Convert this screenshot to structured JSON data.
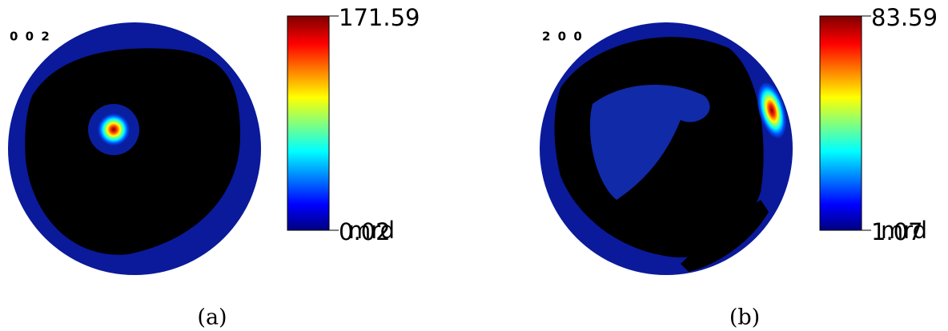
{
  "chart_data": [
    {
      "type": "pole-figure",
      "title": "0 0 2",
      "caption": "(a)",
      "unit": "mrd",
      "clim": [
        0.02,
        171.59
      ],
      "cticks": [
        0.02,
        171.59
      ],
      "colormap": "jet"
    },
    {
      "type": "pole-figure",
      "title": "2 0 0",
      "caption": "(b)",
      "unit": "mrd",
      "clim": [
        1.07,
        83.59
      ],
      "cticks": [
        1.07,
        83.59
      ],
      "colormap": "jet"
    }
  ]
}
